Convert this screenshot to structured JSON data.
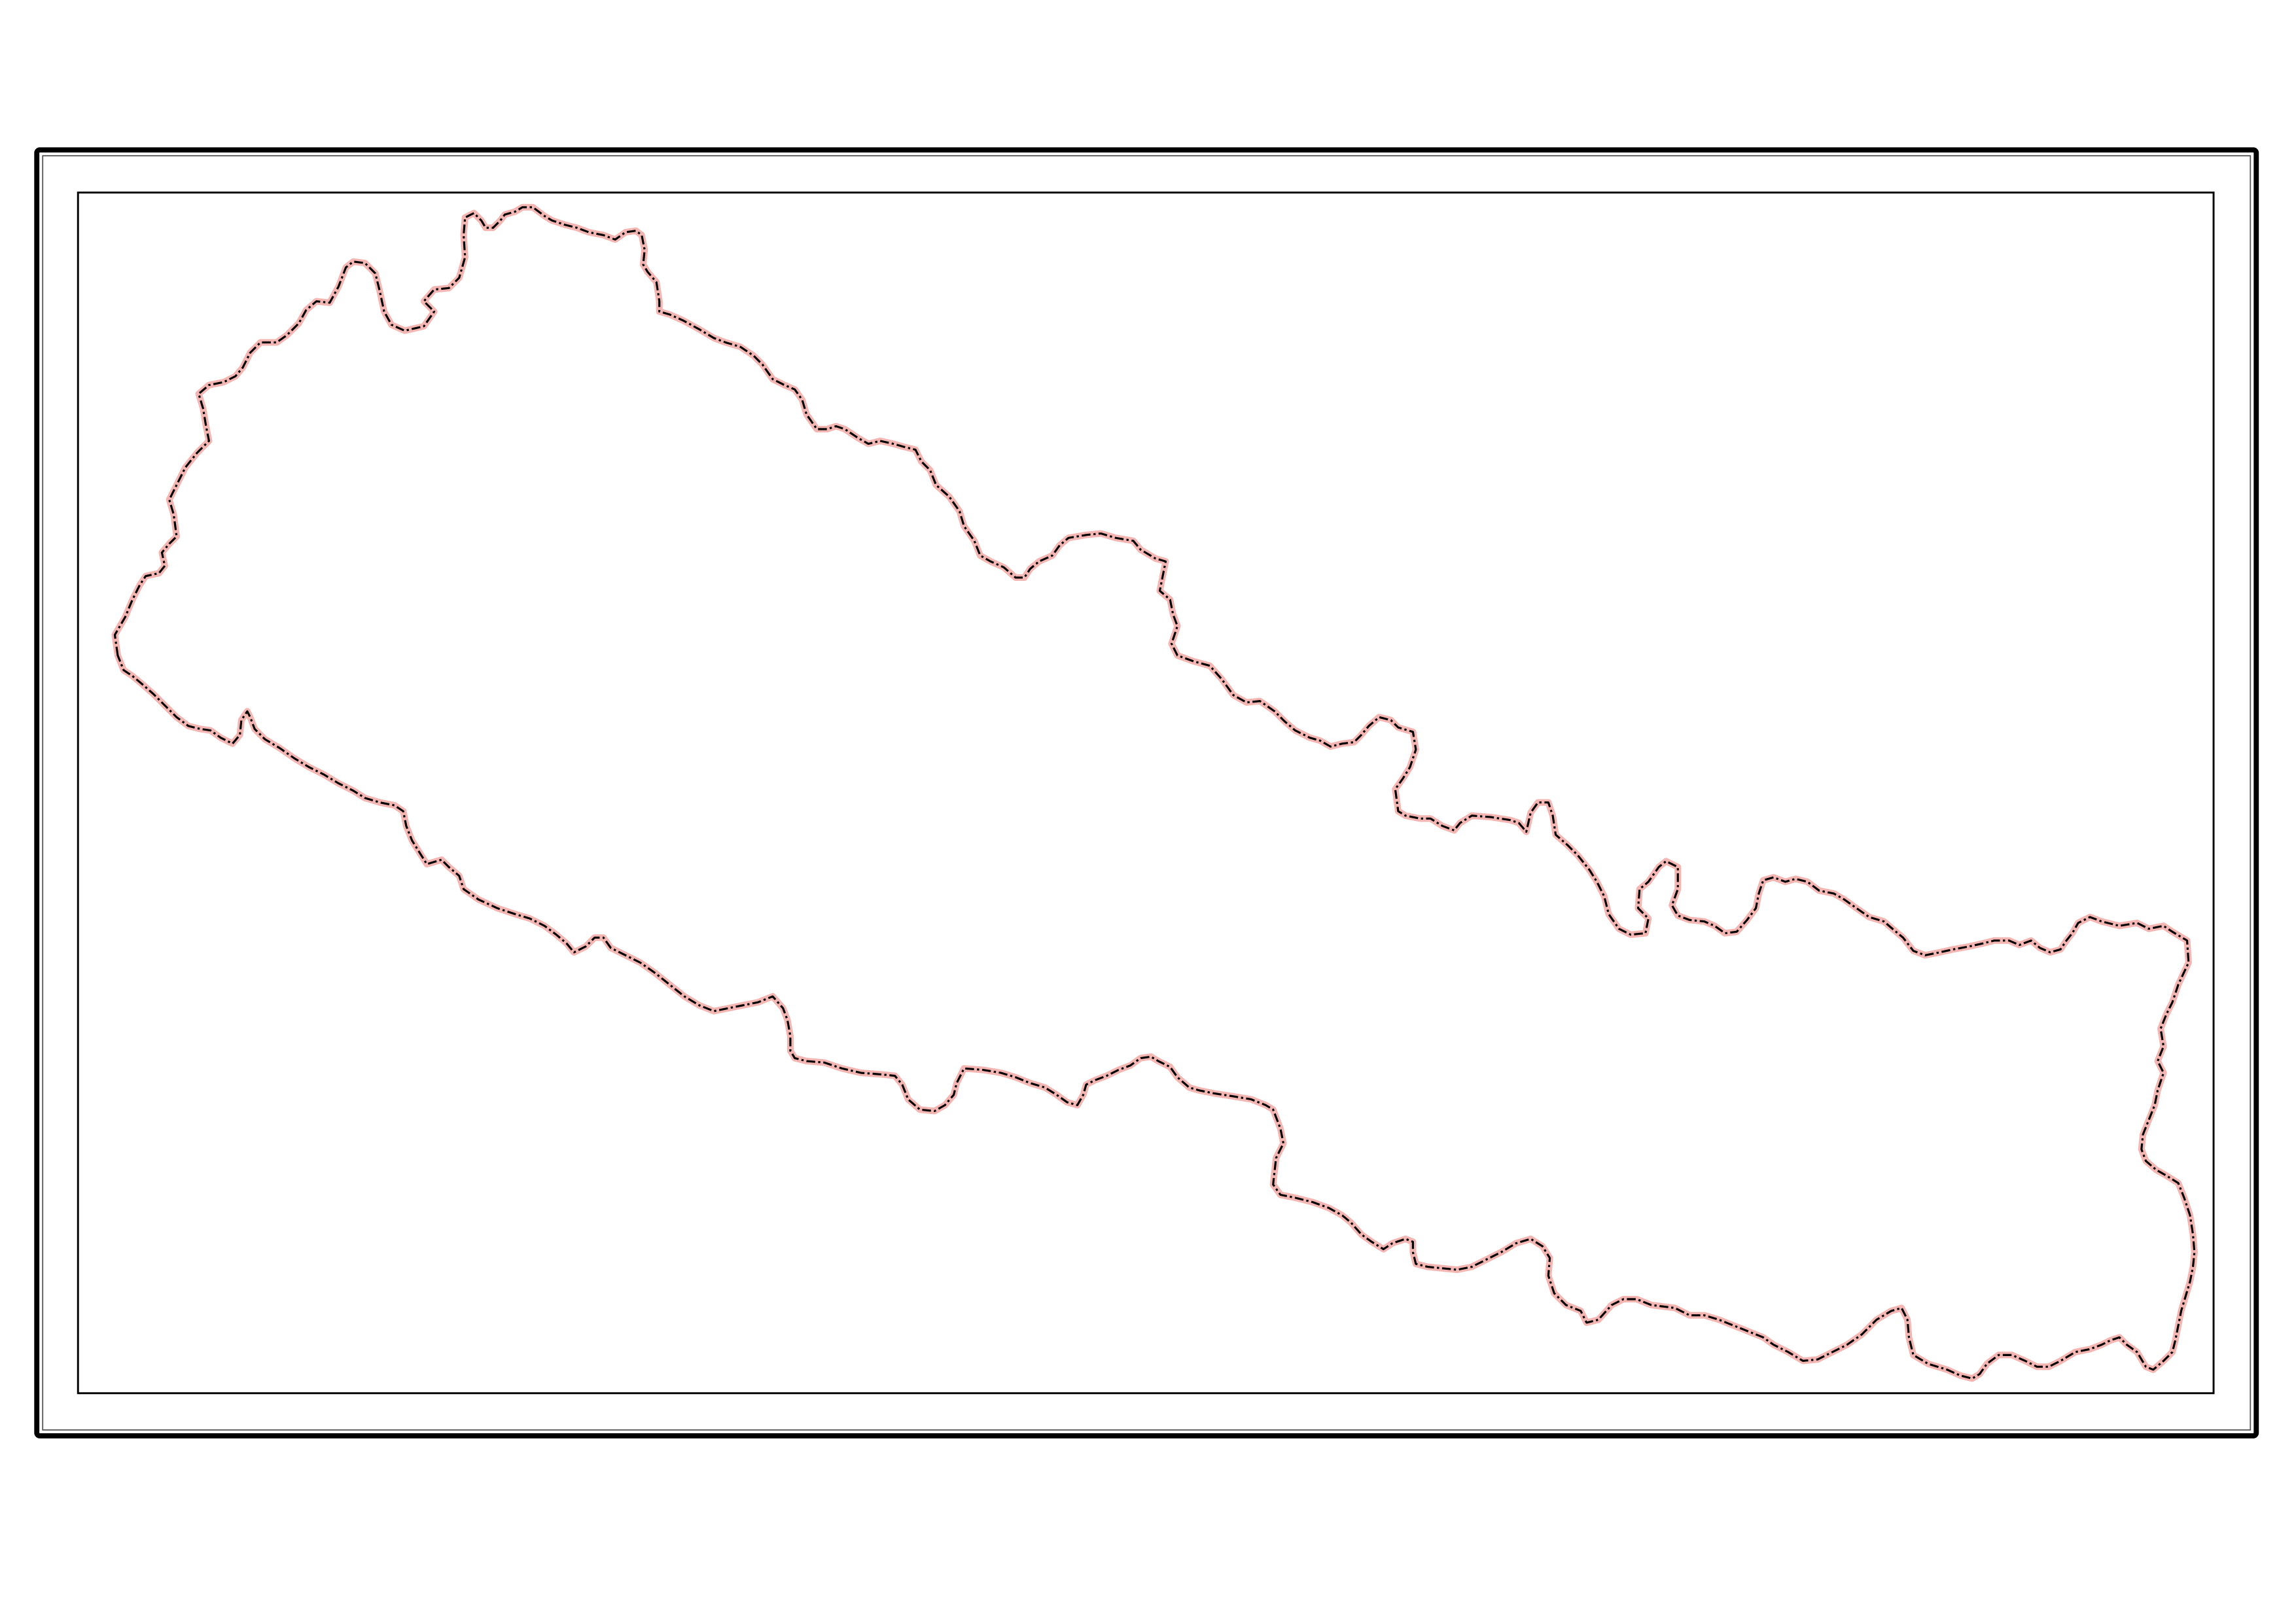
{
  "map": {
    "feature": "national-boundary",
    "boundary_colors": {
      "halo": "#f4b6b2",
      "line": "#000000"
    },
    "frame_colors": {
      "outer": "#000000",
      "middle": "#555555",
      "inner": "#000000"
    },
    "background": "#ffffff"
  }
}
